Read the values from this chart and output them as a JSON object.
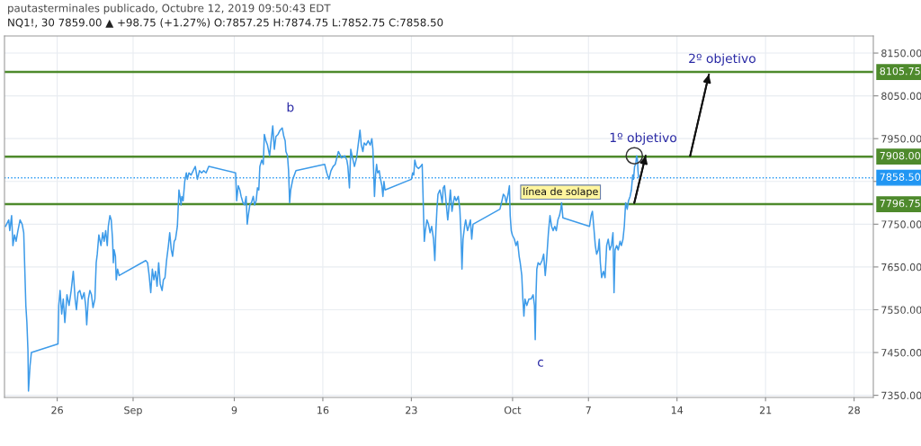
{
  "chart_data": {
    "type": "line",
    "title": "pautasterminales publicado, Octubre 12, 2019 09:50:43 EDT",
    "subtitle": "NQ1!, 30 7859.00 ▲ +98.75 (+1.27%) O:7857.25 H:7874.75 L:7852.75 C:7858.50",
    "series": [
      {
        "color": "#3d9be9",
        "x": [
          "2019-08-21T22:00",
          "2019-08-22T04:00",
          "2019-08-22T06:00",
          "2019-08-22T09:30",
          "2019-08-22T12:00",
          "2019-08-22T15:00",
          "2019-08-22T18:00",
          "2019-08-22T21:30",
          "2019-08-23T01:30",
          "2019-08-23T05:30",
          "2019-08-23T08:30",
          "2019-08-23T10:30",
          "2019-08-23T12:30",
          "2019-08-23T14:30",
          "2019-08-23T16:30",
          "2019-08-23T17:30",
          "2019-08-23T20:30",
          "2019-08-23T23:00",
          "2019-08-26T01:30",
          "2019-08-26T03:00",
          "2019-08-26T05:30",
          "2019-08-26T08:30",
          "2019-08-26T11:30",
          "2019-08-26T14:30",
          "2019-08-26T18:30",
          "2019-08-26T22:30",
          "2019-08-27T02:30",
          "2019-08-27T06:30",
          "2019-08-27T10:00",
          "2019-08-27T12:30",
          "2019-08-27T15:30",
          "2019-08-27T19:00",
          "2019-08-27T23:00",
          "2019-08-28T03:00",
          "2019-08-28T06:00",
          "2019-08-28T08:00",
          "2019-08-28T11:00",
          "2019-08-28T14:00",
          "2019-08-28T17:00",
          "2019-08-28T20:00",
          "2019-08-28T23:30",
          "2019-08-29T02:00",
          "2019-08-29T04:00",
          "2019-08-29T07:00",
          "2019-08-29T11:00",
          "2019-08-29T14:30",
          "2019-08-29T17:00",
          "2019-08-29T20:00",
          "2019-08-29T23:00",
          "2019-08-30T01:00",
          "2019-08-30T04:00",
          "2019-08-30T06:30",
          "2019-08-30T09:00",
          "2019-08-30T10:30",
          "2019-08-30T12:00",
          "2019-08-30T14:30",
          "2019-08-30T16:00",
          "2019-08-30T18:30",
          "2019-08-30T21:30",
          "2019-09-02T00:00",
          "2019-09-02T03:30",
          "2019-09-02T06:30",
          "2019-09-02T09:30",
          "2019-09-02T12:30",
          "2019-09-02T15:30",
          "2019-09-02T18:30",
          "2019-09-02T21:30",
          "2019-09-03T00:30",
          "2019-09-03T03:30",
          "2019-09-03T07:00",
          "2019-09-03T09:30",
          "2019-09-03T12:30",
          "2019-09-03T15:30",
          "2019-09-03T19:00",
          "2019-09-03T21:30",
          "2019-09-04T00:30",
          "2019-09-04T03:00",
          "2019-09-04T06:00",
          "2019-09-04T08:30",
          "2019-09-04T12:00",
          "2019-09-04T14:00",
          "2019-09-04T15:00",
          "2019-09-04T17:00",
          "2019-09-04T19:00",
          "2019-09-04T20:30",
          "2019-09-04T23:00",
          "2019-09-05T02:00",
          "2019-09-05T05:00",
          "2019-09-05T07:00",
          "2019-09-05T10:00",
          "2019-09-05T14:00",
          "2019-09-05T18:00",
          "2019-09-05T22:00",
          "2019-09-06T02:00",
          "2019-09-06T06:00",
          "2019-09-06T10:00",
          "2019-09-06T14:00",
          "2019-09-06T18:30",
          "2019-09-06T23:30",
          "2019-09-09T02:30",
          "2019-09-09T04:30",
          "2019-09-09T07:30",
          "2019-09-09T10:30",
          "2019-09-09T13:00",
          "2019-09-09T16:30",
          "2019-09-09T19:30",
          "2019-09-09T22:30",
          "2019-09-10T00:30",
          "2019-09-10T02:30",
          "2019-09-10T05:30",
          "2019-09-10T08:30",
          "2019-09-10T12:00",
          "2019-09-10T14:30",
          "2019-09-10T17:30",
          "2019-09-10T20:00",
          "2019-09-10T22:30",
          "2019-09-11T00:30",
          "2019-09-11T04:00",
          "2019-09-11T07:00",
          "2019-09-11T09:00",
          "2019-09-11T12:00",
          "2019-09-11T15:00",
          "2019-09-11T19:00",
          "2019-09-11T21:30",
          "2019-09-12T01:00",
          "2019-09-12T04:00",
          "2019-09-12T07:00",
          "2019-09-12T11:00",
          "2019-09-12T15:00",
          "2019-09-12T19:00",
          "2019-09-12T22:00",
          "2019-09-13T00:30",
          "2019-09-13T02:00",
          "2019-09-13T05:00",
          "2019-09-13T07:00",
          "2019-09-13T09:00",
          "2019-09-13T11:00",
          "2019-09-13T15:00",
          "2019-09-13T21:00",
          "2019-09-16T03:30",
          "2019-09-16T07:30",
          "2019-09-16T11:30",
          "2019-09-16T15:30",
          "2019-09-16T19:30",
          "2019-09-16T23:30",
          "2019-09-17T03:30",
          "2019-09-17T05:30",
          "2019-09-17T11:30",
          "2019-09-17T17:30",
          "2019-09-17T21:30",
          "2019-09-17T23:30",
          "2019-09-18T02:30",
          "2019-09-18T05:00",
          "2019-09-18T07:30",
          "2019-09-18T12:00",
          "2019-09-18T16:00",
          "2019-09-18T18:00",
          "2019-09-18T21:00",
          "2019-09-18T22:30",
          "2019-09-19T01:00",
          "2019-09-19T04:00",
          "2019-09-19T06:30",
          "2019-09-19T10:00",
          "2019-09-19T14:00",
          "2019-09-19T18:00",
          "2019-09-19T21:00",
          "2019-09-19T23:00",
          "2019-09-20T02:00",
          "2019-09-20T04:00",
          "2019-09-20T06:00",
          "2019-09-20T08:00",
          "2019-09-20T11:00",
          "2019-09-20T13:30",
          "2019-09-20T16:00",
          "2019-09-20T18:00",
          "2019-09-20T20:00",
          "2019-09-20T22:00",
          "2019-09-23T00:00",
          "2019-09-23T02:30",
          "2019-09-23T04:30",
          "2019-09-23T06:30",
          "2019-09-23T09:30",
          "2019-09-23T13:30",
          "2019-09-23T17:30",
          "2019-09-23T20:30",
          "2019-09-23T22:30",
          "2019-09-24T00:30",
          "2019-09-24T02:30",
          "2019-09-24T05:30",
          "2019-09-24T08:30",
          "2019-09-24T11:30",
          "2019-09-24T14:30",
          "2019-09-24T18:00",
          "2019-09-24T20:30",
          "2019-09-24T22:30",
          "2019-09-25T00:30",
          "2019-09-25T02:30",
          "2019-09-25T06:00",
          "2019-09-25T08:30",
          "2019-09-25T10:30",
          "2019-09-25T12:30",
          "2019-09-25T15:00",
          "2019-09-25T18:00",
          "2019-09-25T21:00",
          "2019-09-25T23:00",
          "2019-09-26T02:00",
          "2019-09-26T05:00",
          "2019-09-26T07:30",
          "2019-09-26T10:00",
          "2019-09-26T13:00",
          "2019-09-26T17:00",
          "2019-09-26T20:00",
          "2019-09-26T22:00",
          "2019-09-27T00:00",
          "2019-09-27T02:00",
          "2019-09-27T05:00",
          "2019-09-27T07:00",
          "2019-09-27T10:30",
          "2019-09-27T13:00",
          "2019-09-27T16:00",
          "2019-09-27T18:30",
          "2019-09-27T21:00",
          "2019-09-30T00:00",
          "2019-09-30T03:00",
          "2019-09-30T06:30",
          "2019-09-30T09:30",
          "2019-09-30T12:00",
          "2019-09-30T15:30",
          "2019-09-30T18:00",
          "2019-09-30T19:30",
          "2019-09-30T21:30",
          "2019-09-30T23:30",
          "2019-10-01T03:30",
          "2019-10-01T06:30",
          "2019-10-01T09:30",
          "2019-10-01T12:30",
          "2019-10-01T14:30",
          "2019-10-01T17:30",
          "2019-10-01T19:30",
          "2019-10-01T21:30",
          "2019-10-01T23:30",
          "2019-10-02T03:00",
          "2019-10-02T07:00",
          "2019-10-02T11:00",
          "2019-10-02T15:00",
          "2019-10-02T17:30",
          "2019-10-02T19:00",
          "2019-10-02T20:30",
          "2019-10-02T22:00",
          "2019-10-03T00:30",
          "2019-10-03T04:00",
          "2019-10-03T08:00",
          "2019-10-03T11:00",
          "2019-10-03T14:00",
          "2019-10-03T16:30",
          "2019-10-03T20:00",
          "2019-10-03T23:00",
          "2019-10-04T02:00",
          "2019-10-04T05:00",
          "2019-10-04T08:00",
          "2019-10-04T11:00",
          "2019-10-04T14:00",
          "2019-10-04T17:00",
          "2019-10-04T19:30",
          "2019-10-04T21:00",
          "2019-10-04T23:30",
          "2019-10-07T02:00",
          "2019-10-07T05:00",
          "2019-10-07T07:30",
          "2019-10-07T10:00",
          "2019-10-07T13:00",
          "2019-10-07T15:30",
          "2019-10-07T18:30",
          "2019-10-07T20:30",
          "2019-10-07T22:30",
          "2019-10-08T01:00",
          "2019-10-08T04:30",
          "2019-10-08T07:30",
          "2019-10-08T10:30",
          "2019-10-08T13:30",
          "2019-10-08T16:30",
          "2019-10-08T19:30",
          "2019-10-08T22:30",
          "2019-10-09T00:30",
          "2019-10-09T02:30",
          "2019-10-09T05:30",
          "2019-10-09T08:30",
          "2019-10-09T12:00",
          "2019-10-09T14:30",
          "2019-10-09T17:30",
          "2019-10-09T20:00",
          "2019-10-09T22:30",
          "2019-10-10T01:30",
          "2019-10-10T04:00",
          "2019-10-10T07:00",
          "2019-10-10T09:30",
          "2019-10-10T12:00",
          "2019-10-10T13:30",
          "2019-10-10T15:30",
          "2019-10-10T17:30",
          "2019-10-10T19:30",
          "2019-10-10T21:00",
          "2019-10-10T22:00",
          "2019-10-10T23:00"
        ],
        "values": [
          7745,
          7760,
          7735,
          7770,
          7700,
          7725,
          7710,
          7735,
          7760,
          7750,
          7730,
          7645,
          7560,
          7520,
          7455,
          7360,
          7420,
          7450,
          7470,
          7560,
          7595,
          7540,
          7575,
          7520,
          7585,
          7560,
          7595,
          7640,
          7575,
          7550,
          7590,
          7595,
          7575,
          7590,
          7560,
          7515,
          7575,
          7595,
          7585,
          7555,
          7575,
          7660,
          7680,
          7725,
          7700,
          7730,
          7710,
          7735,
          7700,
          7745,
          7770,
          7760,
          7715,
          7660,
          7690,
          7675,
          7620,
          7645,
          7630,
          7665,
          7660,
          7630,
          7590,
          7645,
          7620,
          7640,
          7605,
          7660,
          7610,
          7595,
          7620,
          7625,
          7665,
          7700,
          7730,
          7690,
          7675,
          7710,
          7715,
          7745,
          7800,
          7830,
          7815,
          7795,
          7815,
          7805,
          7850,
          7870,
          7855,
          7870,
          7865,
          7875,
          7885,
          7855,
          7875,
          7870,
          7875,
          7870,
          7885,
          7870,
          7805,
          7840,
          7830,
          7815,
          7800,
          7795,
          7815,
          7750,
          7770,
          7795,
          7800,
          7815,
          7795,
          7805,
          7835,
          7830,
          7885,
          7900,
          7890,
          7960,
          7945,
          7935,
          7910,
          7940,
          7980,
          7925,
          7955,
          7960,
          7970,
          7975,
          7955,
          7945,
          7920,
          7910,
          7875,
          7800,
          7830,
          7855,
          7875,
          7890,
          7870,
          7855,
          7875,
          7885,
          7890,
          7910,
          7920,
          7905,
          7910,
          7900,
          7885,
          7835,
          7925,
          7910,
          7885,
          7905,
          7925,
          7955,
          7970,
          7935,
          7920,
          7940,
          7935,
          7945,
          7935,
          7950,
          7925,
          7815,
          7865,
          7890,
          7870,
          7875,
          7855,
          7840,
          7815,
          7850,
          7830,
          7855,
          7870,
          7865,
          7900,
          7885,
          7880,
          7885,
          7890,
          7800,
          7710,
          7735,
          7760,
          7750,
          7730,
          7745,
          7715,
          7665,
          7735,
          7785,
          7820,
          7830,
          7815,
          7800,
          7835,
          7840,
          7800,
          7760,
          7785,
          7830,
          7780,
          7800,
          7815,
          7805,
          7815,
          7785,
          7730,
          7645,
          7715,
          7745,
          7760,
          7735,
          7745,
          7760,
          7715,
          7750,
          7785,
          7800,
          7820,
          7815,
          7800,
          7820,
          7840,
          7770,
          7735,
          7725,
          7715,
          7700,
          7710,
          7675,
          7660,
          7630,
          7575,
          7535,
          7575,
          7560,
          7575,
          7575,
          7585,
          7560,
          7480,
          7585,
          7645,
          7660,
          7655,
          7665,
          7680,
          7630,
          7665,
          7730,
          7770,
          7745,
          7735,
          7745,
          7735,
          7760,
          7770,
          7785,
          7800,
          7765,
          7745,
          7770,
          7780,
          7745,
          7700,
          7680,
          7690,
          7715,
          7660,
          7625,
          7640,
          7625,
          7700,
          7715,
          7690,
          7700,
          7730,
          7590,
          7690,
          7700,
          7690,
          7710,
          7700,
          7715,
          7745,
          7800,
          7785,
          7805,
          7815,
          7830,
          7865,
          7855,
          7885,
          7890,
          7910,
          7900,
          7875,
          7860
        ]
      },
      {
        "type": "line",
        "color": "#111111",
        "x": [
          "2019-10-10T15:00",
          "2019-10-11T12:30"
        ],
        "values": [
          7800,
          7910
        ]
      },
      {
        "type": "line",
        "color": "#111111",
        "x": [
          "2019-10-15T01:00",
          "2019-10-16T12:30"
        ],
        "values": [
          7910,
          8100
        ]
      },
      {
        "type": "scatter",
        "color": "#333333",
        "marker": "circle",
        "x": [
          "2019-10-10T15:00"
        ],
        "values": [
          7910
        ]
      }
    ],
    "xlim": [
      "2019-08-21T20:00",
      "2019-10-29T12:30"
    ],
    "xticks": [
      {
        "value": "2019-08-26",
        "label": "26"
      },
      {
        "value": "2019-09-01",
        "label": "Sep"
      },
      {
        "value": "2019-09-09",
        "label": "9"
      },
      {
        "value": "2019-09-16",
        "label": "16"
      },
      {
        "value": "2019-09-23",
        "label": "23"
      },
      {
        "value": "2019-10-01",
        "label": "Oct"
      },
      {
        "value": "2019-10-07",
        "label": "7"
      },
      {
        "value": "2019-10-14",
        "label": "14"
      },
      {
        "value": "2019-10-21",
        "label": "21"
      },
      {
        "value": "2019-10-28",
        "label": "28"
      }
    ],
    "ylim": [
      7345,
      8190
    ],
    "yticks": [
      {
        "value": 7350,
        "label": "7350.00"
      },
      {
        "value": 7450,
        "label": "7450.00"
      },
      {
        "value": 7550,
        "label": "7550.00"
      },
      {
        "value": 7650,
        "label": "7650.00"
      },
      {
        "value": 7750,
        "label": "7750.00"
      },
      {
        "value": 7850,
        "label": null
      },
      {
        "value": 7950,
        "label": "7950.00"
      },
      {
        "value": 8050,
        "label": "8050.00"
      },
      {
        "value": 8150,
        "label": "8150.00"
      }
    ],
    "grid": true,
    "ref_lines": [
      {
        "axis": "y",
        "value": 8105.75,
        "label": "8105.75",
        "color": "#4e8a2c"
      },
      {
        "axis": "y",
        "value": 7908,
        "label": "7908.00",
        "color": "#4e8a2c"
      },
      {
        "axis": "y",
        "value": 7858.5,
        "label": "7858.50",
        "color": "#2196f3",
        "line_style": "dotted"
      },
      {
        "axis": "y",
        "value": 7796.75,
        "label": "7796.75",
        "color": "#4e8a2c"
      }
    ],
    "annotations": [
      "b",
      "c",
      "1º objetivo",
      "2º objetivo",
      "línea de solape"
    ]
  }
}
